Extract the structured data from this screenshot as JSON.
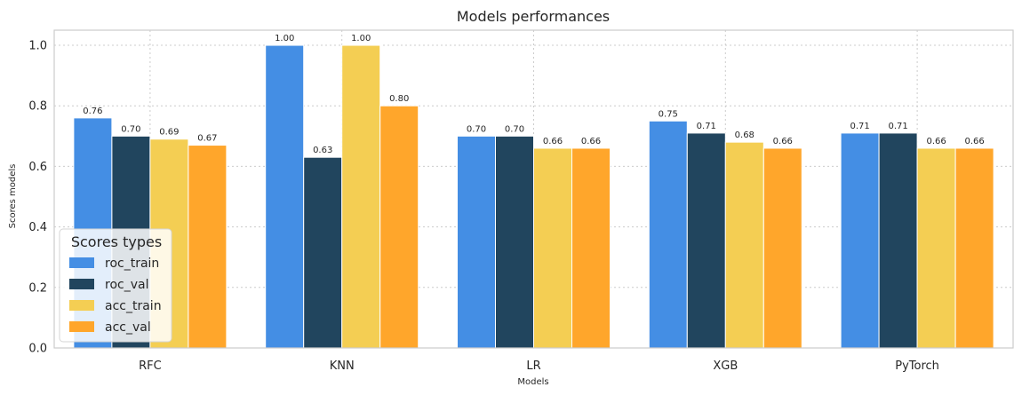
{
  "chart_data": {
    "type": "bar",
    "title": "Models performances",
    "xlabel": "Models",
    "ylabel": "Scores models",
    "categories": [
      "RFC",
      "KNN",
      "LR",
      "XGB",
      "PyTorch"
    ],
    "series": [
      {
        "name": "roc_train",
        "values": [
          0.76,
          1.0,
          0.7,
          0.75,
          0.71
        ],
        "labels": [
          "0.76",
          "1.00",
          "0.70",
          "0.75",
          "0.71"
        ],
        "color": "#448ee4"
      },
      {
        "name": "roc_val",
        "values": [
          0.7,
          0.63,
          0.7,
          0.71,
          0.71
        ],
        "labels": [
          "0.70",
          "0.63",
          "0.70",
          "0.71",
          "0.71"
        ],
        "color": "#21455e"
      },
      {
        "name": "acc_train",
        "values": [
          0.69,
          1.0,
          0.66,
          0.68,
          0.66
        ],
        "labels": [
          "0.69",
          "1.00",
          "0.66",
          "0.68",
          "0.66"
        ],
        "color": "#f4ce53"
      },
      {
        "name": "acc_val",
        "values": [
          0.67,
          0.8,
          0.66,
          0.66,
          0.66
        ],
        "labels": [
          "0.67",
          "0.80",
          "0.66",
          "0.66",
          "0.66"
        ],
        "color": "#ffa62b"
      }
    ],
    "ylim": [
      0,
      1.05
    ],
    "yticks": [
      "0.0",
      "0.2",
      "0.4",
      "0.6",
      "0.8",
      "1.0"
    ],
    "grid": true,
    "legend": {
      "title": "Scores types",
      "placement": "lower-left"
    }
  }
}
